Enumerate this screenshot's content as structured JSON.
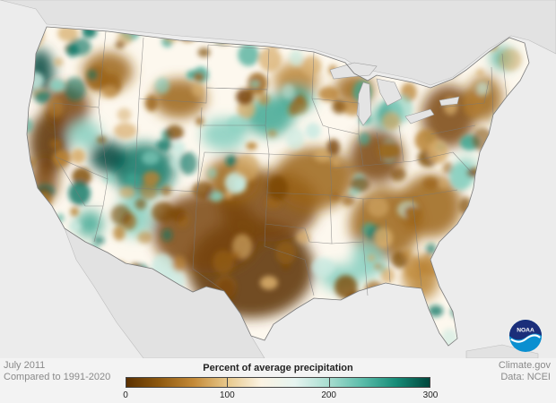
{
  "caption": {
    "date": "July 2011",
    "baseline": "Compared to 1991-2020",
    "source": "Climate.gov",
    "data_credit": "Data: NCEI"
  },
  "legend": {
    "title": "Percent of average precipitation",
    "min": 0,
    "max": 300,
    "ticks": [
      "0",
      "100",
      "200",
      "300"
    ],
    "tick_values": [
      0,
      100,
      200,
      300
    ],
    "colors": [
      "#5a3000",
      "#8f5a10",
      "#c48a38",
      "#e8c98c",
      "#fbf3e3",
      "#e6f4f0",
      "#a8ddd0",
      "#5bbcaa",
      "#168c78",
      "#00473d"
    ]
  },
  "logo": {
    "text": "NOAA",
    "colors": {
      "top": "#1b2e7a",
      "bottom": "#0a8fd0",
      "wave": "#ffffff"
    }
  },
  "map_colors": {
    "ocean": "#ececec",
    "land_outside": "#e2e2e2",
    "usa_base": "#fdf8ee",
    "border": "#7a7a7a"
  }
}
